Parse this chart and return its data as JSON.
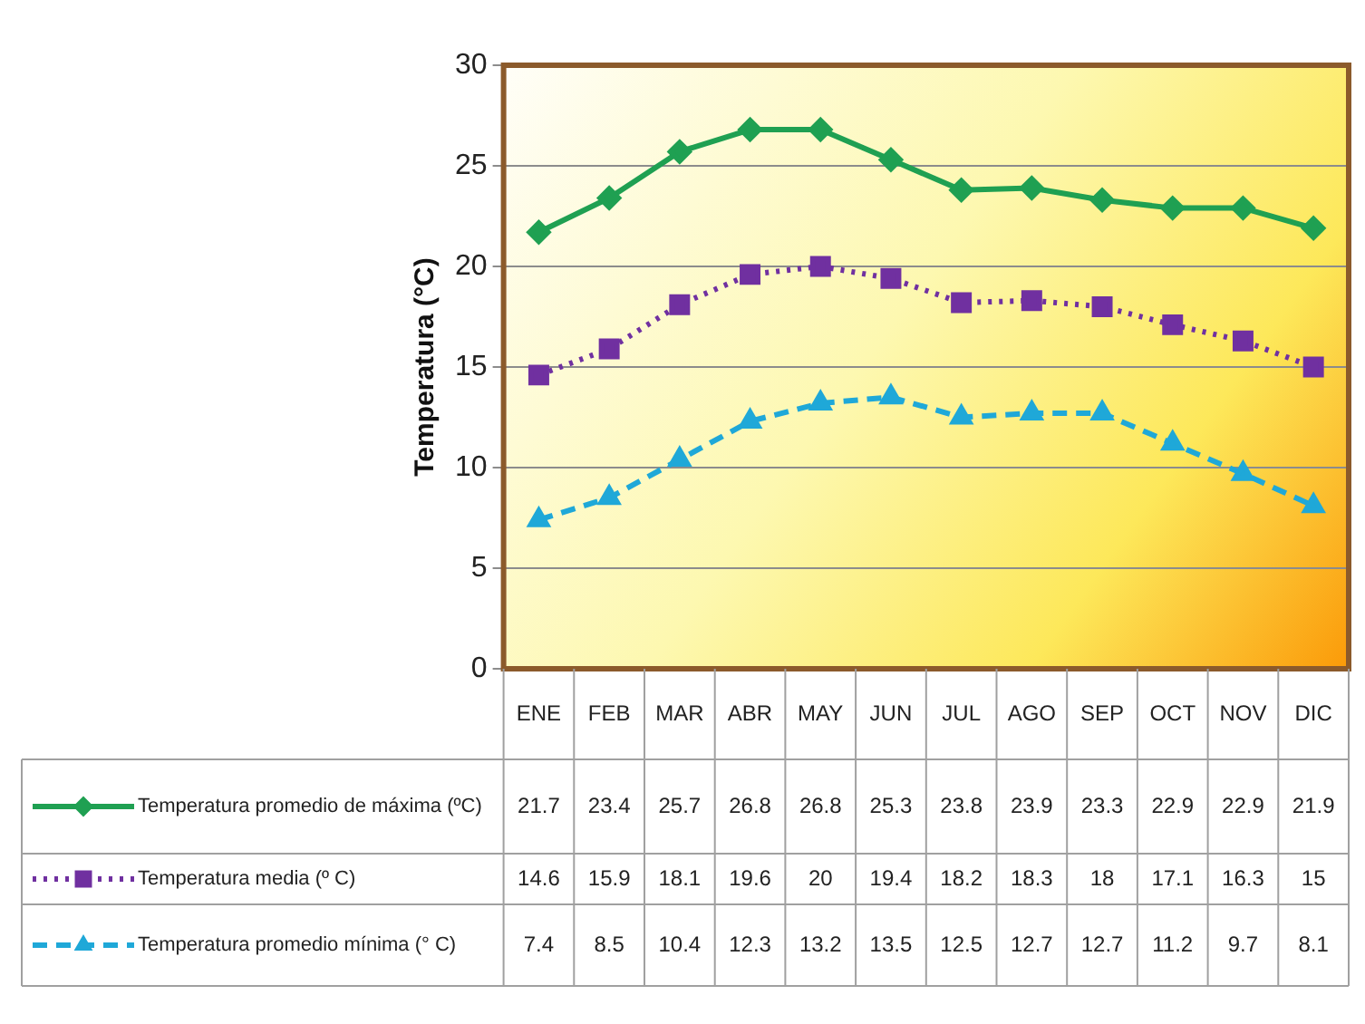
{
  "chart_data": {
    "type": "line",
    "ylabel": "Temperatura (°C)",
    "categories": [
      "ENE",
      "FEB",
      "MAR",
      "ABR",
      "MAY",
      "JUN",
      "JUL",
      "AGO",
      "SEP",
      "OCT",
      "NOV",
      "DIC"
    ],
    "series": [
      {
        "name": "Temperatura promedio de máxima (ºC)",
        "color": "#1fa052",
        "marker": "diamond",
        "line_style": "solid",
        "values": [
          21.7,
          23.4,
          25.7,
          26.8,
          26.8,
          25.3,
          23.8,
          23.9,
          23.3,
          22.9,
          22.9,
          21.9
        ]
      },
      {
        "name": "Temperatura media (º C)",
        "color": "#7030a0",
        "marker": "square",
        "line_style": "dotted",
        "values": [
          14.6,
          15.9,
          18.1,
          19.6,
          20,
          19.4,
          18.2,
          18.3,
          18,
          17.1,
          16.3,
          15
        ]
      },
      {
        "name": "Temperatura promedio mínima (° C)",
        "color": "#1fa8d8",
        "marker": "triangle",
        "line_style": "dashed",
        "values": [
          7.4,
          8.5,
          10.4,
          12.3,
          13.2,
          13.5,
          12.5,
          12.7,
          12.7,
          11.2,
          9.7,
          8.1
        ]
      }
    ],
    "ylim": [
      0,
      30
    ],
    "yticks": [
      0,
      5,
      10,
      15,
      20,
      25,
      30
    ],
    "grid": "y",
    "legend": "bottom",
    "data_labels": true
  }
}
